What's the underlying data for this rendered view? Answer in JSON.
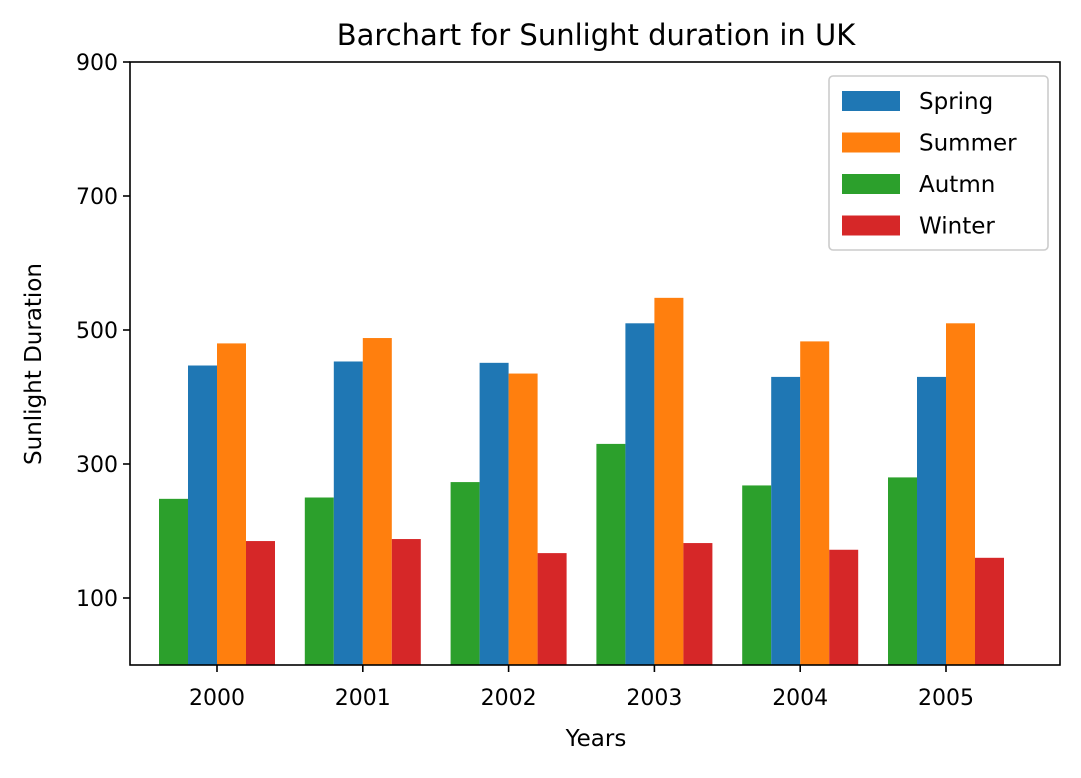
{
  "chart_data": {
    "type": "bar",
    "title": "Barchart for Sunlight duration in UK",
    "xlabel": "Years",
    "ylabel": "Sunlight Duration",
    "categories": [
      "2000",
      "2001",
      "2002",
      "2003",
      "2004",
      "2005"
    ],
    "yticks": [
      "100",
      "300",
      "500",
      "700",
      "900"
    ],
    "ylim": [
      0,
      900
    ],
    "grid": false,
    "legend_position": "top-right",
    "series": [
      {
        "name": "Autmn",
        "color": "#2ca02c",
        "values": [
          248,
          250,
          273,
          330,
          268,
          280
        ]
      },
      {
        "name": "Spring",
        "color": "#1f77b4",
        "values": [
          447,
          453,
          451,
          510,
          430,
          430
        ]
      },
      {
        "name": "Summer",
        "color": "#ff7f0e",
        "values": [
          480,
          488,
          435,
          548,
          483,
          510
        ]
      },
      {
        "name": "Winter",
        "color": "#d62728",
        "values": [
          185,
          188,
          167,
          182,
          172,
          160
        ]
      }
    ],
    "legend_order": [
      "Spring",
      "Summer",
      "Autmn",
      "Winter"
    ]
  }
}
